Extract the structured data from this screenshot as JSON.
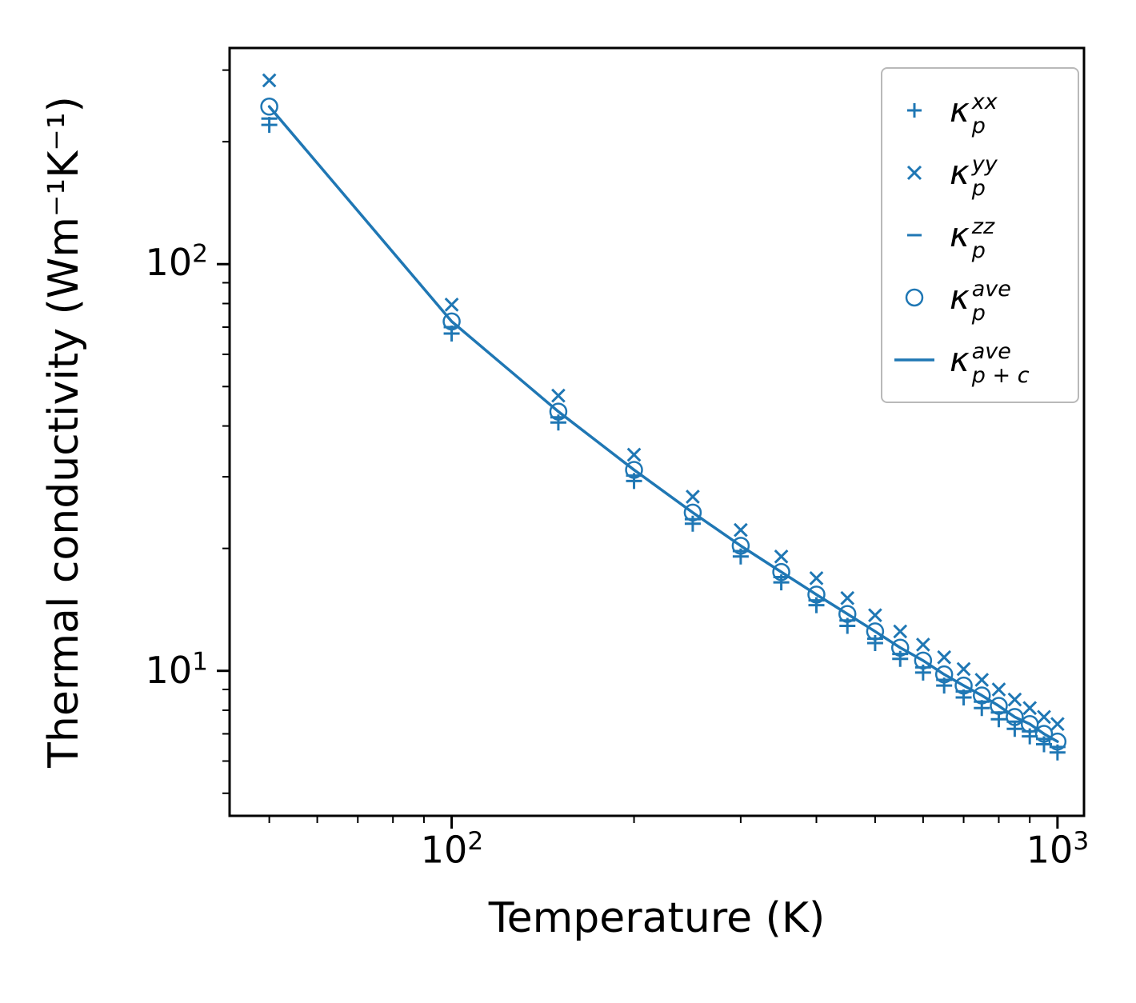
{
  "chart_data": {
    "type": "scatter",
    "title": "",
    "xlabel": "Temperature (K)",
    "ylabel": "Thermal conductivity (Wm⁻¹K⁻¹)",
    "xscale": "log",
    "yscale": "log",
    "xlim": [
      43,
      1106
    ],
    "ylim": [
      4.4,
      340
    ],
    "grid": false,
    "legend_position": "upper right",
    "color": "#1f77b4",
    "x": [
      50,
      100,
      150,
      200,
      250,
      300,
      350,
      400,
      450,
      500,
      550,
      600,
      650,
      700,
      750,
      800,
      850,
      900,
      950,
      1000
    ],
    "series": [
      {
        "name": "kappa_p_xx",
        "marker": "plus",
        "values": [
          220,
          67.5,
          40.8,
          29.3,
          23.0,
          19.1,
          16.5,
          14.5,
          12.9,
          11.7,
          10.7,
          9.9,
          9.2,
          8.6,
          8.1,
          7.6,
          7.2,
          6.9,
          6.6,
          6.3
        ]
      },
      {
        "name": "kappa_p_yy",
        "marker": "x",
        "values": [
          283,
          79.5,
          47.5,
          34.0,
          26.8,
          22.2,
          19.1,
          16.9,
          15.1,
          13.7,
          12.5,
          11.6,
          10.8,
          10.1,
          9.5,
          9.0,
          8.5,
          8.1,
          7.7,
          7.4
        ]
      },
      {
        "name": "kappa_p_zz",
        "marker": "dash",
        "values": [
          228,
          70.0,
          42.0,
          30.2,
          23.6,
          19.7,
          17.0,
          14.9,
          13.3,
          12.0,
          11.0,
          10.2,
          9.5,
          8.9,
          8.4,
          7.9,
          7.5,
          7.1,
          6.8,
          6.5
        ]
      },
      {
        "name": "kappa_p_ave",
        "marker": "circle",
        "values": [
          244,
          72.3,
          43.4,
          31.2,
          24.5,
          20.3,
          17.5,
          15.4,
          13.8,
          12.5,
          11.4,
          10.6,
          9.8,
          9.2,
          8.7,
          8.2,
          7.7,
          7.4,
          7.0,
          6.7
        ]
      },
      {
        "name": "kappa_p_plus_c_ave",
        "marker": "line",
        "values": [
          244,
          72.3,
          43.4,
          31.2,
          24.5,
          20.3,
          17.5,
          15.4,
          13.8,
          12.5,
          11.4,
          10.6,
          9.8,
          9.2,
          8.7,
          8.2,
          7.7,
          7.4,
          7.0,
          6.7
        ]
      }
    ],
    "xticks": [
      {
        "base": "10",
        "exp": "2",
        "value": 100
      },
      {
        "base": "10",
        "exp": "3",
        "value": 1000
      }
    ],
    "yticks": [
      {
        "base": "10",
        "exp": "2",
        "value": 100
      },
      {
        "base": "10",
        "exp": "1",
        "value": 10
      }
    ]
  },
  "legend": {
    "entries": [
      {
        "kappa": "κ",
        "sup": "xx",
        "sub": "p"
      },
      {
        "kappa": "κ",
        "sup": "yy",
        "sub": "p"
      },
      {
        "kappa": "κ",
        "sup": "zz",
        "sub": "p"
      },
      {
        "kappa": "κ",
        "sup": "ave",
        "sub": "p"
      },
      {
        "kappa": "κ",
        "sup": "ave",
        "sub": "p + c"
      }
    ]
  }
}
